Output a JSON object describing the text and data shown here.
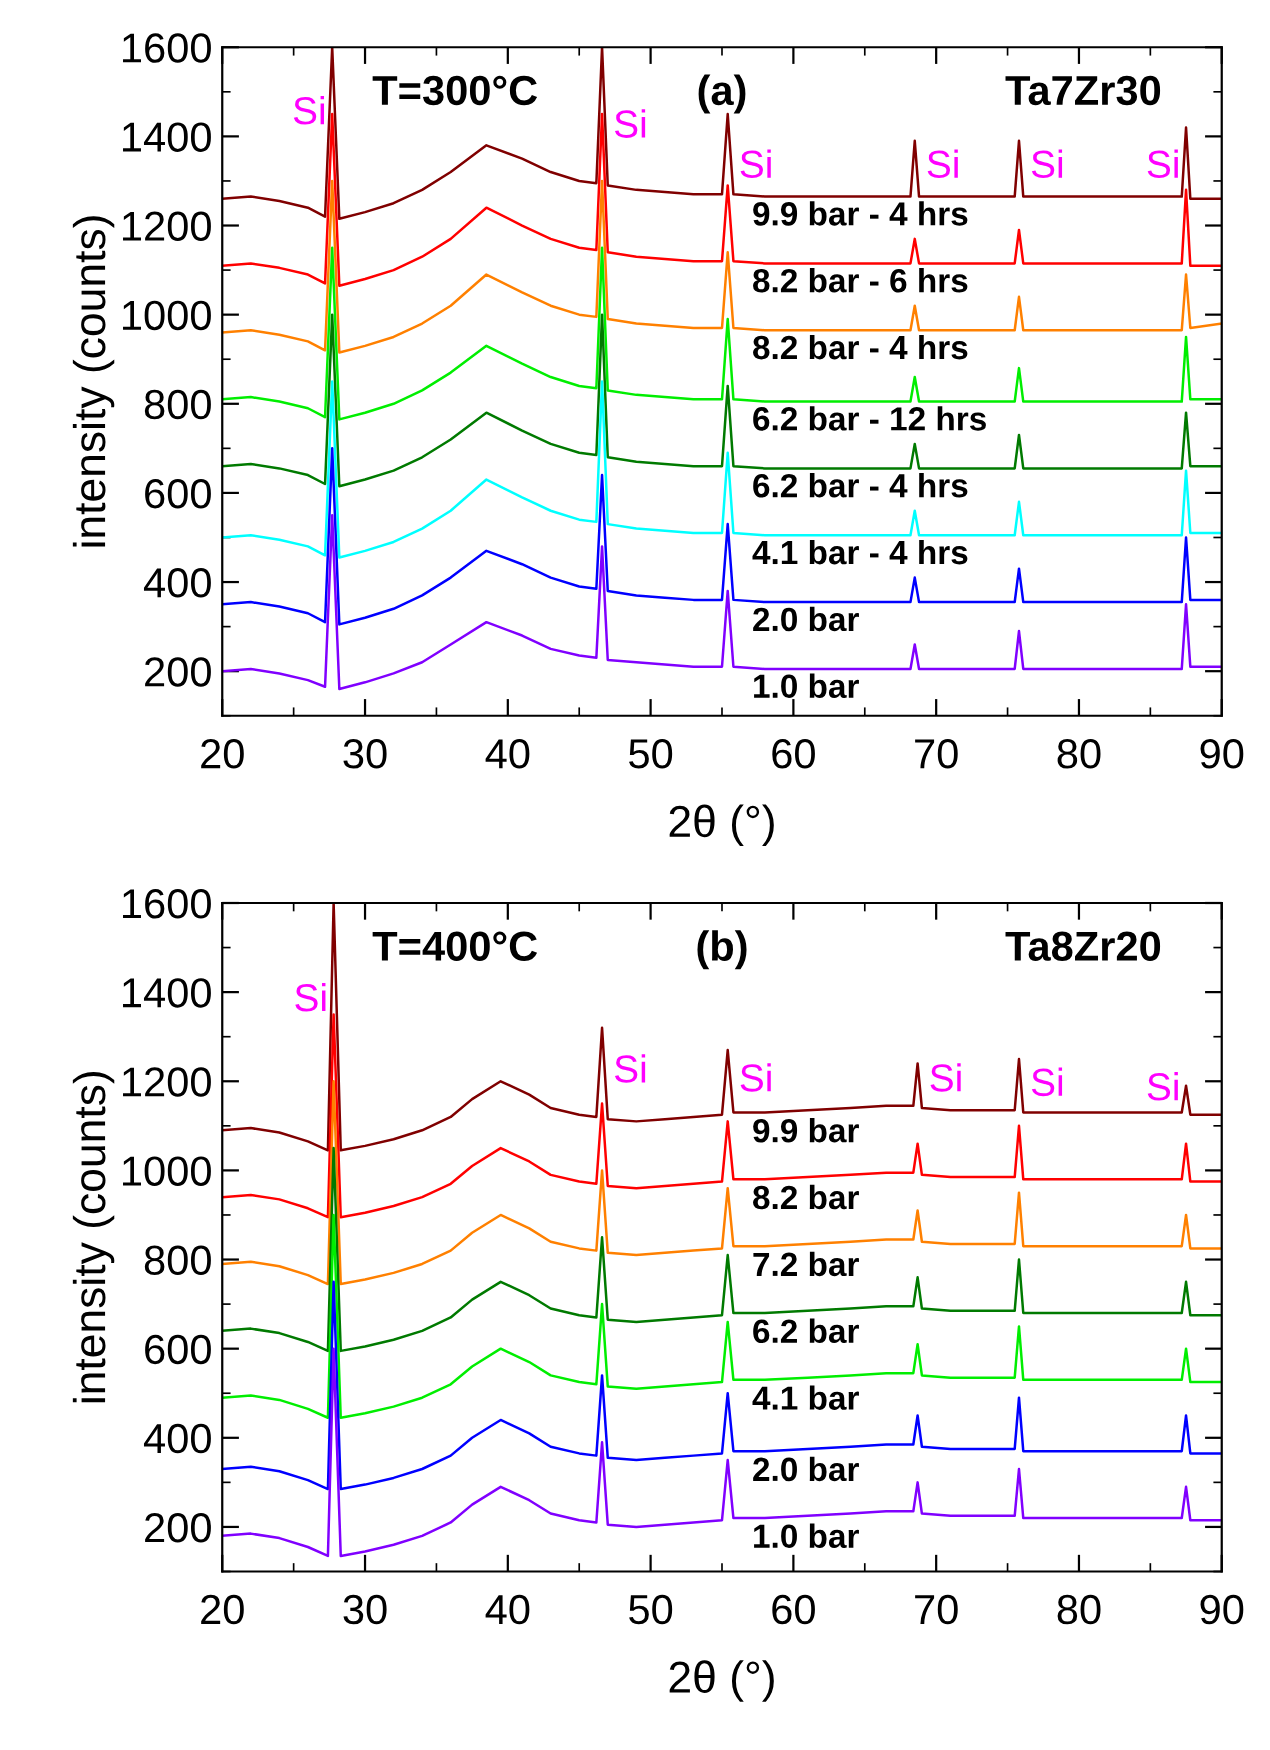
{
  "chart_data": [
    {
      "type": "line",
      "xlabel": "2θ (°)",
      "ylabel": "intensity (counts)",
      "xlim": [
        20,
        90
      ],
      "xticks": [
        20,
        30,
        40,
        50,
        60,
        70,
        80,
        90
      ],
      "ylim": [
        100,
        1600
      ],
      "yticks": [
        200,
        400,
        600,
        800,
        1000,
        1200,
        1400,
        1600
      ],
      "grid": false,
      "legend": false,
      "marker": "none",
      "line_style": "solid",
      "annotations": [
        "T=300°C",
        "(a)",
        "Ta7Zr30",
        {
          "text": "Si",
          "x": 27.7,
          "y": 1450
        },
        {
          "text": "Si",
          "x": 46.6,
          "y": 1420
        },
        {
          "text": "Si",
          "x": 55.4,
          "y": 1330
        },
        {
          "text": "Si",
          "x": 68.5,
          "y": 1330
        },
        {
          "text": "Si",
          "x": 75.8,
          "y": 1330
        },
        {
          "text": "Si",
          "x": 87.5,
          "y": 1330
        }
      ],
      "x": [
        20,
        22,
        24,
        26,
        27.2,
        27.7,
        28.2,
        30,
        32,
        34,
        36,
        38.5,
        41,
        43,
        45,
        46.2,
        46.6,
        47.0,
        49,
        51,
        53,
        55.0,
        55.4,
        55.8,
        58,
        61,
        64,
        66.5,
        68.2,
        68.5,
        68.8,
        71,
        73.5,
        75.5,
        75.8,
        76.1,
        79,
        82,
        85,
        87.2,
        87.5,
        87.8,
        90
      ],
      "series": [
        {
          "name": "9.9 bar - 4 hrs",
          "color": "#800000",
          "values": [
            1260,
            1265,
            1255,
            1240,
            1220,
            1600,
            1215,
            1230,
            1250,
            1280,
            1320,
            1380,
            1350,
            1320,
            1300,
            1295,
            1600,
            1290,
            1280,
            1275,
            1270,
            1270,
            1450,
            1270,
            1265,
            1265,
            1265,
            1265,
            1265,
            1390,
            1265,
            1265,
            1265,
            1265,
            1390,
            1265,
            1265,
            1265,
            1265,
            1265,
            1420,
            1260,
            1260
          ]
        },
        {
          "name": "8.2 bar - 6 hrs",
          "color": "#ff0000",
          "values": [
            1110,
            1115,
            1105,
            1090,
            1070,
            1450,
            1065,
            1080,
            1100,
            1130,
            1170,
            1240,
            1200,
            1170,
            1150,
            1145,
            1450,
            1140,
            1130,
            1125,
            1120,
            1120,
            1290,
            1120,
            1115,
            1115,
            1115,
            1115,
            1115,
            1170,
            1115,
            1115,
            1115,
            1115,
            1190,
            1115,
            1115,
            1115,
            1115,
            1115,
            1280,
            1110,
            1110
          ]
        },
        {
          "name": "8.2 bar - 4 hrs",
          "color": "#ff8000",
          "values": [
            960,
            965,
            955,
            940,
            920,
            1300,
            915,
            930,
            950,
            980,
            1020,
            1090,
            1050,
            1020,
            1000,
            995,
            1300,
            990,
            980,
            975,
            970,
            970,
            1140,
            970,
            965,
            965,
            965,
            965,
            965,
            1020,
            965,
            965,
            965,
            965,
            1040,
            965,
            965,
            965,
            965,
            965,
            1090,
            970,
            980
          ]
        },
        {
          "name": "6.2 bar - 12 hrs",
          "color": "#00ee00",
          "values": [
            810,
            815,
            805,
            790,
            770,
            1150,
            765,
            780,
            800,
            830,
            870,
            930,
            890,
            860,
            840,
            835,
            1150,
            830,
            820,
            815,
            810,
            810,
            990,
            810,
            805,
            805,
            805,
            805,
            805,
            860,
            805,
            805,
            805,
            805,
            880,
            805,
            805,
            805,
            805,
            805,
            950,
            810,
            810
          ]
        },
        {
          "name": "6.2 bar - 4 hrs",
          "color": "#007a00",
          "values": [
            660,
            665,
            655,
            640,
            620,
            1000,
            615,
            630,
            650,
            680,
            720,
            780,
            740,
            710,
            690,
            685,
            1000,
            680,
            670,
            665,
            660,
            660,
            840,
            660,
            655,
            655,
            655,
            655,
            655,
            710,
            655,
            655,
            655,
            655,
            730,
            655,
            655,
            655,
            655,
            655,
            780,
            660,
            660
          ]
        },
        {
          "name": "4.1 bar - 4 hrs",
          "color": "#00ffff",
          "values": [
            500,
            505,
            495,
            480,
            460,
            850,
            455,
            470,
            490,
            520,
            560,
            630,
            590,
            560,
            540,
            535,
            850,
            530,
            520,
            515,
            510,
            510,
            690,
            510,
            505,
            505,
            505,
            505,
            505,
            560,
            505,
            505,
            505,
            505,
            580,
            505,
            505,
            505,
            505,
            505,
            650,
            510,
            510
          ]
        },
        {
          "name": "2.0 bar",
          "color": "#0000ff",
          "values": [
            350,
            355,
            345,
            330,
            310,
            700,
            305,
            320,
            340,
            370,
            410,
            470,
            440,
            410,
            390,
            385,
            640,
            380,
            370,
            365,
            360,
            360,
            530,
            360,
            355,
            355,
            355,
            355,
            355,
            410,
            355,
            355,
            355,
            355,
            430,
            355,
            355,
            355,
            355,
            355,
            500,
            360,
            360
          ]
        },
        {
          "name": "1.0 bar",
          "color": "#8000ff",
          "values": [
            200,
            205,
            195,
            180,
            165,
            550,
            160,
            175,
            195,
            220,
            260,
            310,
            280,
            250,
            235,
            230,
            480,
            225,
            220,
            215,
            210,
            210,
            380,
            210,
            205,
            205,
            205,
            205,
            205,
            260,
            205,
            205,
            205,
            205,
            290,
            205,
            205,
            205,
            205,
            205,
            350,
            210,
            210
          ]
        }
      ]
    },
    {
      "type": "line",
      "xlabel": "2θ (°)",
      "ylabel": "intensity (counts)",
      "xlim": [
        20,
        90
      ],
      "xticks": [
        20,
        30,
        40,
        50,
        60,
        70,
        80,
        90
      ],
      "ylim": [
        100,
        1600
      ],
      "yticks": [
        200,
        400,
        600,
        800,
        1000,
        1200,
        1400,
        1600
      ],
      "grid": false,
      "legend": false,
      "marker": "none",
      "line_style": "solid",
      "annotations": [
        "T=400°C",
        "(b)",
        "Ta8Zr20",
        {
          "text": "Si",
          "x": 27.8,
          "y": 1380
        },
        {
          "text": "Si",
          "x": 46.6,
          "y": 1220
        },
        {
          "text": "Si",
          "x": 55.4,
          "y": 1200
        },
        {
          "text": "Si",
          "x": 68.7,
          "y": 1200
        },
        {
          "text": "Si",
          "x": 75.8,
          "y": 1190
        },
        {
          "text": "Si",
          "x": 87.5,
          "y": 1180
        }
      ],
      "x": [
        20,
        22,
        24,
        26,
        27.4,
        27.8,
        28.3,
        30,
        32,
        34,
        36,
        37.5,
        39.5,
        41.5,
        43,
        45,
        46.2,
        46.6,
        47.0,
        49,
        51,
        53,
        55.0,
        55.4,
        55.8,
        58,
        61,
        64,
        66.5,
        68.4,
        68.7,
        69.0,
        71,
        73.5,
        75.5,
        75.8,
        76.1,
        79,
        82,
        85,
        87.2,
        87.5,
        87.8,
        90
      ],
      "series": [
        {
          "name": "9.9 bar",
          "color": "#800000",
          "values": [
            1090,
            1095,
            1085,
            1065,
            1045,
            1600,
            1045,
            1055,
            1070,
            1090,
            1120,
            1160,
            1200,
            1170,
            1140,
            1125,
            1120,
            1320,
            1115,
            1110,
            1115,
            1120,
            1125,
            1270,
            1130,
            1130,
            1135,
            1140,
            1145,
            1145,
            1240,
            1140,
            1135,
            1135,
            1135,
            1250,
            1130,
            1130,
            1130,
            1130,
            1130,
            1190,
            1125,
            1125
          ]
        },
        {
          "name": "8.2 bar",
          "color": "#ff0000",
          "values": [
            940,
            945,
            935,
            915,
            895,
            1350,
            895,
            905,
            920,
            940,
            970,
            1010,
            1050,
            1020,
            990,
            975,
            970,
            1150,
            965,
            960,
            965,
            970,
            975,
            1110,
            980,
            980,
            985,
            990,
            995,
            995,
            1060,
            990,
            985,
            985,
            985,
            1100,
            980,
            980,
            980,
            980,
            980,
            1060,
            975,
            975
          ]
        },
        {
          "name": "7.2 bar",
          "color": "#ff8000",
          "values": [
            790,
            795,
            785,
            765,
            745,
            1200,
            745,
            755,
            770,
            790,
            820,
            860,
            900,
            870,
            840,
            825,
            820,
            1000,
            815,
            810,
            815,
            820,
            825,
            960,
            830,
            830,
            835,
            840,
            845,
            845,
            910,
            840,
            835,
            835,
            835,
            950,
            830,
            830,
            830,
            830,
            830,
            900,
            825,
            825
          ]
        },
        {
          "name": "6.2 bar",
          "color": "#007a00",
          "values": [
            640,
            645,
            635,
            615,
            595,
            1050,
            595,
            605,
            620,
            640,
            670,
            710,
            750,
            720,
            690,
            675,
            670,
            850,
            665,
            660,
            665,
            670,
            675,
            810,
            680,
            680,
            685,
            690,
            695,
            695,
            760,
            690,
            685,
            685,
            685,
            800,
            680,
            680,
            680,
            680,
            680,
            750,
            675,
            675
          ]
        },
        {
          "name": "4.1 bar",
          "color": "#00ee00",
          "values": [
            490,
            495,
            485,
            465,
            445,
            900,
            445,
            455,
            470,
            490,
            520,
            560,
            600,
            570,
            540,
            525,
            520,
            700,
            515,
            510,
            515,
            520,
            525,
            660,
            530,
            530,
            535,
            540,
            545,
            545,
            610,
            540,
            535,
            535,
            535,
            650,
            530,
            530,
            530,
            530,
            530,
            600,
            525,
            525
          ]
        },
        {
          "name": "2.0 bar",
          "color": "#0000ff",
          "values": [
            330,
            335,
            325,
            305,
            285,
            750,
            285,
            295,
            310,
            330,
            360,
            400,
            440,
            410,
            380,
            365,
            360,
            540,
            355,
            350,
            355,
            360,
            365,
            500,
            370,
            370,
            375,
            380,
            385,
            385,
            450,
            380,
            375,
            375,
            375,
            490,
            370,
            370,
            370,
            370,
            370,
            450,
            365,
            365
          ]
        },
        {
          "name": "1.0 bar",
          "color": "#8000ff",
          "values": [
            180,
            185,
            175,
            155,
            135,
            600,
            135,
            145,
            160,
            180,
            210,
            250,
            290,
            260,
            230,
            215,
            210,
            390,
            205,
            200,
            205,
            210,
            215,
            350,
            220,
            220,
            225,
            230,
            235,
            235,
            300,
            230,
            225,
            225,
            225,
            330,
            220,
            220,
            220,
            220,
            220,
            290,
            215,
            215
          ]
        }
      ]
    }
  ]
}
